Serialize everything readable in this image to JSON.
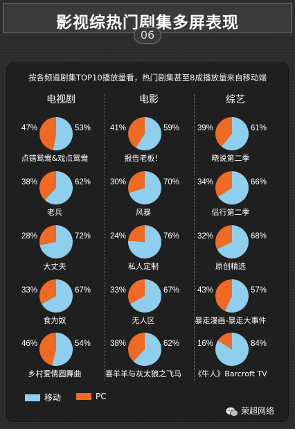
{
  "header": {
    "title": "影视综热门剧集多屏表现",
    "number": "06"
  },
  "subtitle": "按各频道剧集TOP10播放量看，热门剧集甚至8成播放量来自移动端",
  "colors": {
    "mobile": "#8ecfed",
    "pc": "#f06a23"
  },
  "legend": {
    "mobile": "移动",
    "pc": "PC"
  },
  "watermark": "荣超网络",
  "chart_data": [
    {
      "type": "pie",
      "category": "电视剧",
      "items": [
        {
          "name": "点错鸳鸯&戏点鸳鸯",
          "mobile": 53,
          "pc": 47,
          "mobile_label": "53%",
          "pc_label": "47%"
        },
        {
          "name": "老兵",
          "mobile": 62,
          "pc": 38,
          "mobile_label": "62%",
          "pc_label": "38%"
        },
        {
          "name": "大丈夫",
          "mobile": 72,
          "pc": 28,
          "mobile_label": "72%",
          "pc_label": "28%"
        },
        {
          "name": "食为奴",
          "mobile": 67,
          "pc": 33,
          "mobile_label": "67%",
          "pc_label": "33%"
        },
        {
          "name": "乡村爱情圆舞曲",
          "mobile": 54,
          "pc": 46,
          "mobile_label": "54%",
          "pc_label": "46%"
        }
      ]
    },
    {
      "type": "pie",
      "category": "电影",
      "items": [
        {
          "name": "报告老板！",
          "mobile": 59,
          "pc": 41,
          "mobile_label": "59%",
          "pc_label": "41%"
        },
        {
          "name": "风暴",
          "mobile": 70,
          "pc": 30,
          "mobile_label": "70%",
          "pc_label": "30%"
        },
        {
          "name": "私人定制",
          "mobile": 76,
          "pc": 24,
          "mobile_label": "76%",
          "pc_label": "24%"
        },
        {
          "name": "无人区",
          "mobile": 67,
          "pc": 33,
          "mobile_label": "67%",
          "pc_label": "33%"
        },
        {
          "name": "喜羊羊与灰太狼之飞马",
          "mobile": 62,
          "pc": 38,
          "mobile_label": "62%",
          "pc_label": "38%"
        }
      ]
    },
    {
      "type": "pie",
      "category": "综艺",
      "items": [
        {
          "name": "晓说第二季",
          "mobile": 61,
          "pc": 39,
          "mobile_label": "61%",
          "pc_label": "39%"
        },
        {
          "name": "侣行第二季",
          "mobile": 66,
          "pc": 34,
          "mobile_label": "66%",
          "pc_label": "34%"
        },
        {
          "name": "原创精选",
          "mobile": 68,
          "pc": 32,
          "mobile_label": "68%",
          "pc_label": "32%"
        },
        {
          "name": "暴走漫画-暴走大事件",
          "mobile": 57,
          "pc": 43,
          "mobile_label": "57%",
          "pc_label": "43%"
        },
        {
          "name": "《牛人》Barcroft TV",
          "mobile": 84,
          "pc": 16,
          "mobile_label": "84%",
          "pc_label": "16%"
        }
      ]
    }
  ]
}
